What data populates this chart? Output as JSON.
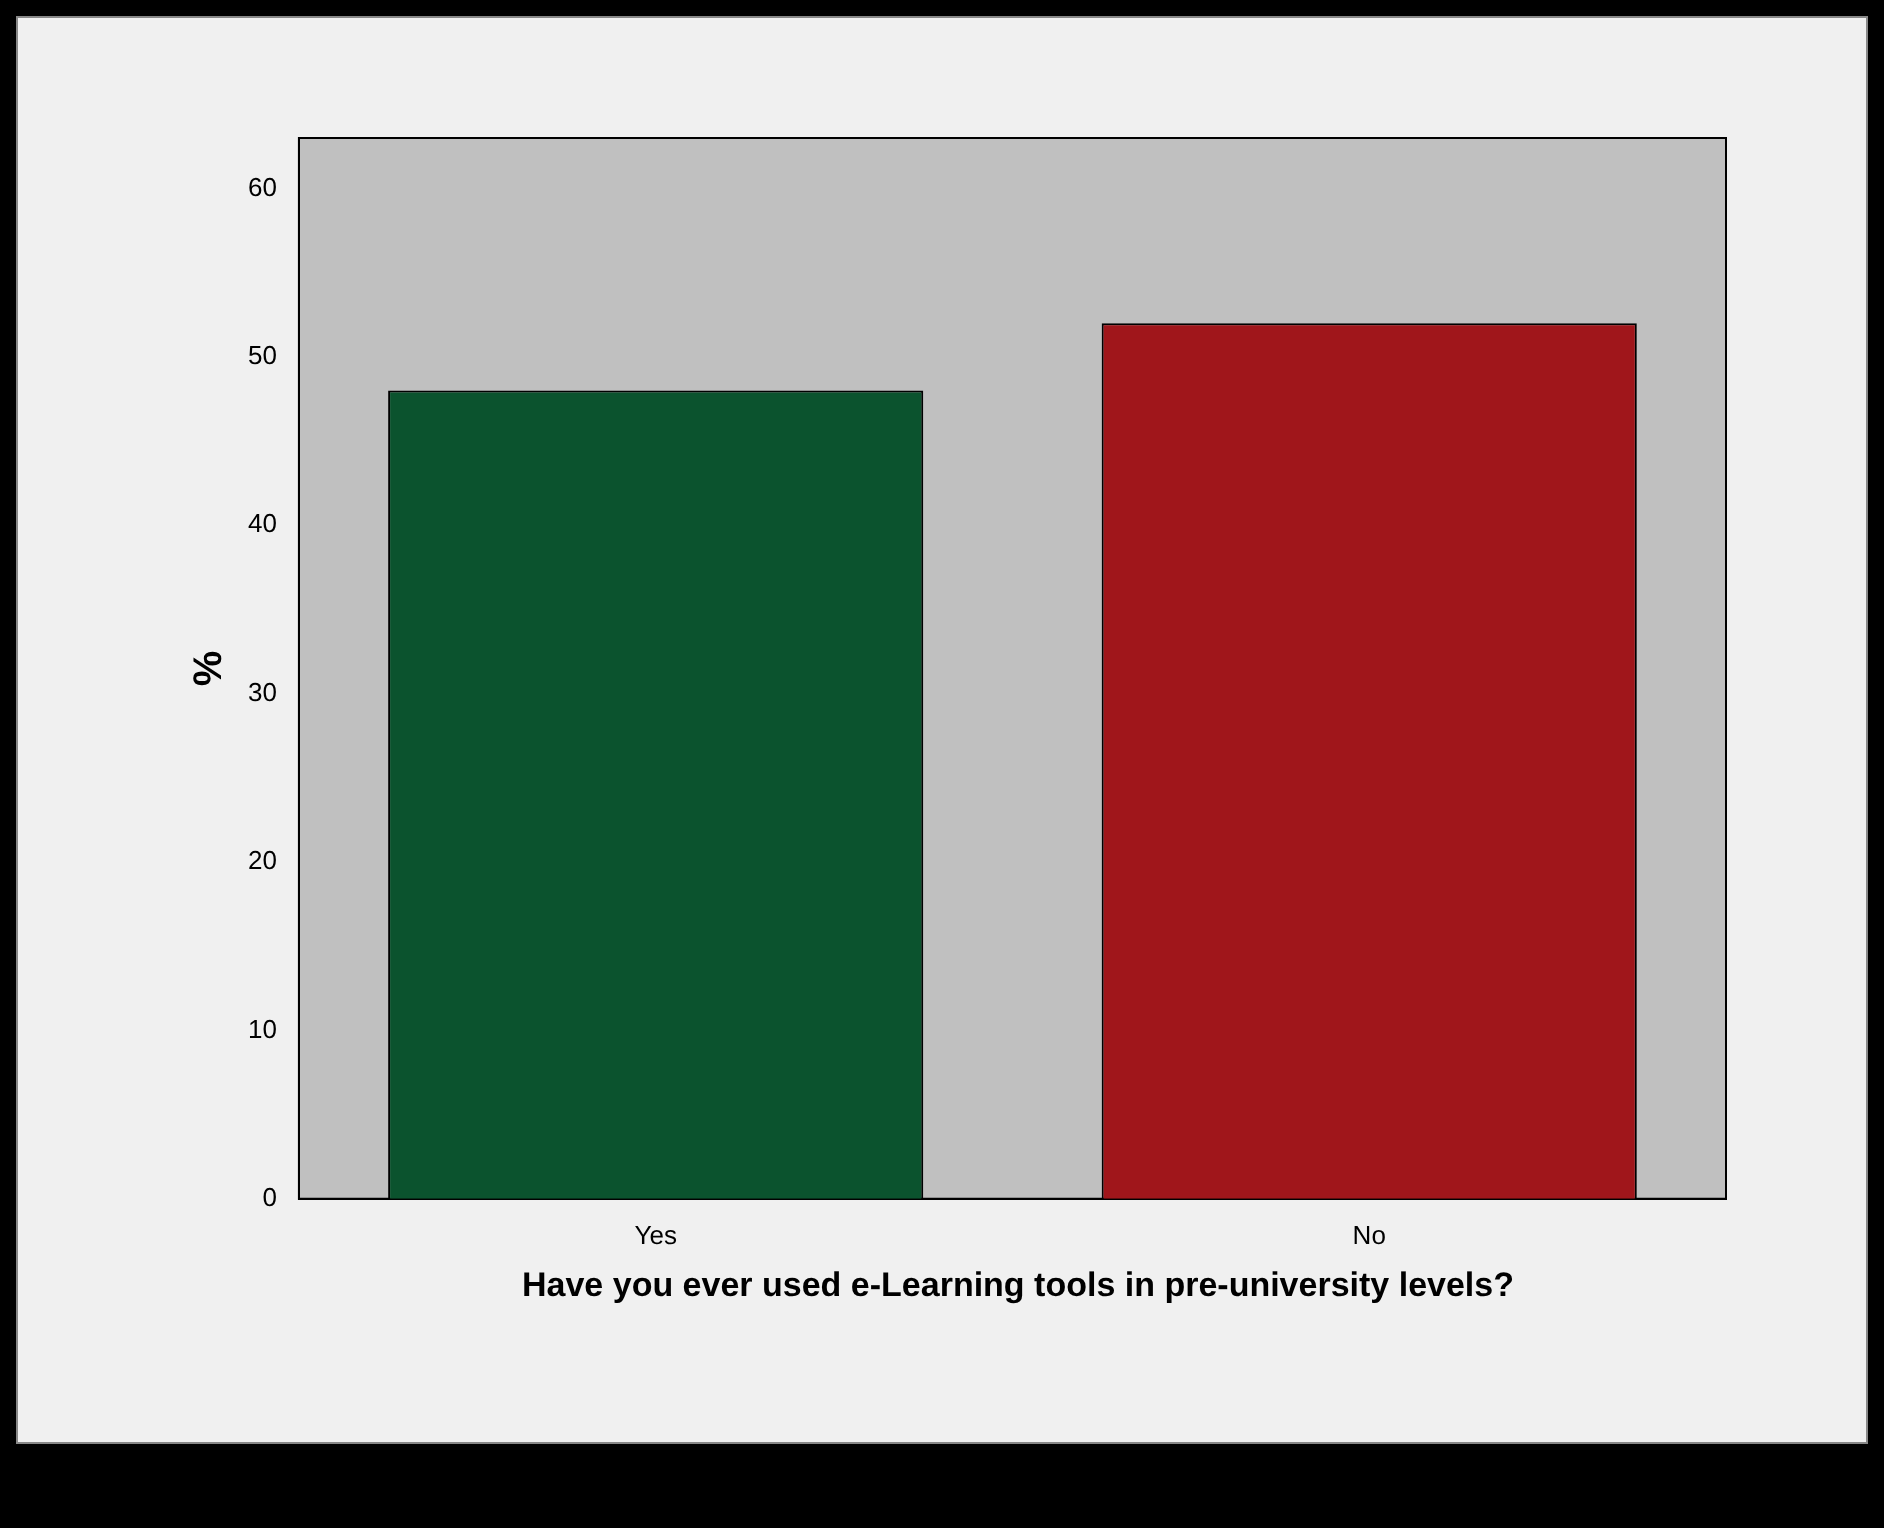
{
  "chart_data": {
    "type": "bar",
    "xlabel": "Have you ever used e-Learning tools in pre-university levels?",
    "ylabel": "%",
    "categories": [
      "Yes",
      "No"
    ],
    "values": [
      48,
      52
    ],
    "colors": [
      "#0b532e",
      "#a0161b"
    ],
    "ylim": [
      0,
      63
    ],
    "yticks": [
      0,
      10,
      20,
      30,
      40,
      50,
      60
    ],
    "grid": false,
    "legend": false
  }
}
